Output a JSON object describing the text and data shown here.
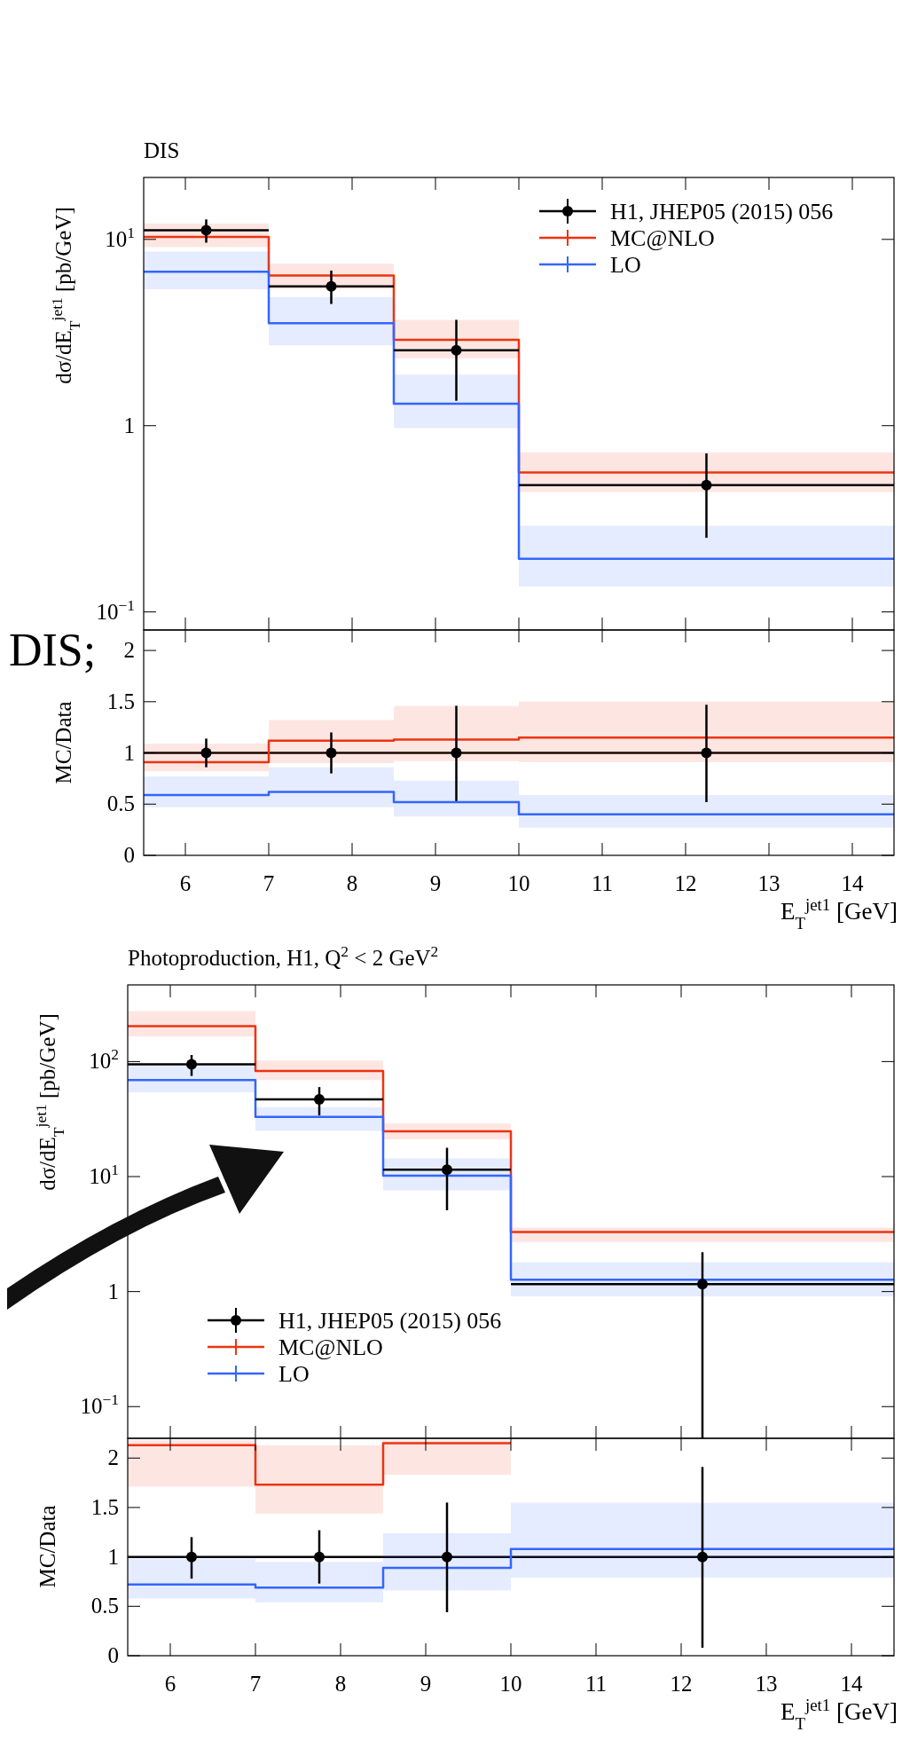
{
  "chart_data": [
    {
      "type": "step",
      "title": "DIS",
      "ylabel": "dσ/dE$_{T}$$^{jet1}$ [pb/GeV]",
      "log": "y",
      "xlim": [
        5.5,
        14.5
      ],
      "xticks": [
        6,
        7,
        8,
        9,
        10,
        11,
        12,
        13,
        14
      ],
      "ylim": [
        0.08,
        21.5
      ],
      "yticks": [
        {
          "value": 0.1,
          "label": "10$^{−1}$"
        },
        1,
        {
          "value": 10,
          "label": "10$^{1}$"
        }
      ],
      "tick_labels": "y",
      "legend": "top right",
      "series": [
        {
          "type": "step",
          "name": "MC@NLO",
          "color": "#ee3311",
          "x": [
            5.5,
            7,
            8.5,
            10,
            14.5
          ],
          "values": [
            10.3,
            6.4,
            2.89,
            0.56,
            0.56
          ],
          "lower": [
            9.1,
            5.4,
            2.3,
            0.44,
            0.44
          ],
          "upper": [
            12.2,
            7.4,
            3.7,
            0.72,
            0.72
          ]
        },
        {
          "type": "step",
          "name": "LO",
          "color": "#3366ff",
          "x": [
            5.5,
            7,
            8.5,
            10,
            14.5
          ],
          "values": [
            6.7,
            3.55,
            1.31,
            0.193,
            0.193
          ],
          "lower": [
            5.4,
            2.7,
            0.97,
            0.137,
            0.137
          ],
          "upper": [
            8.6,
            4.9,
            1.88,
            0.29,
            0.29
          ]
        },
        {
          "type": "scatter",
          "name": "H1, JHEP05 (2015) 056",
          "color": "#000000",
          "marker": "circle",
          "x": [
            6.25,
            7.75,
            9.25,
            12.25
          ],
          "values": [
            11.2,
            5.6,
            2.54,
            0.48
          ],
          "xerrors": [
            0.75,
            0.75,
            0.75,
            2.25
          ],
          "errors": [
            [
              9.6,
              12.8
            ],
            [
              4.5,
              6.8
            ],
            [
              1.36,
              3.7
            ],
            [
              0.25,
              0.71
            ]
          ]
        }
      ]
    },
    {
      "type": "step",
      "ylabel": "MC/Data",
      "xlabel": "E$_{T}$$^{jet1}$ [GeV]",
      "xlim": [
        5.5,
        14.5
      ],
      "xticks": [
        6,
        7,
        8,
        9,
        10,
        11,
        12,
        13,
        14
      ],
      "ylim": [
        0,
        2.2
      ],
      "yticks": [
        0,
        0.5,
        1,
        1.5,
        2
      ],
      "legend": false,
      "annotations": [
        "DIS;"
      ],
      "ref_lines": [
        {
          "axis": "y",
          "value": 1,
          "color": "#000000"
        }
      ],
      "series": [
        {
          "type": "step",
          "color": "#ee3311",
          "x": [
            5.5,
            7,
            8.5,
            10,
            14.5
          ],
          "values": [
            0.91,
            1.12,
            1.13,
            1.15,
            1.15
          ],
          "lower": [
            0.82,
            0.9,
            0.92,
            0.91,
            0.91
          ],
          "upper": [
            1.09,
            1.32,
            1.46,
            1.5,
            1.5
          ]
        },
        {
          "type": "step",
          "color": "#3366ff",
          "x": [
            5.5,
            7,
            8.5,
            10,
            14.5
          ],
          "values": [
            0.59,
            0.62,
            0.52,
            0.4,
            0.4
          ],
          "lower": [
            0.47,
            0.47,
            0.38,
            0.27,
            0.27
          ],
          "upper": [
            0.77,
            0.86,
            0.73,
            0.59,
            0.59
          ]
        },
        {
          "type": "scatter",
          "color": "#000000",
          "marker": "circle",
          "x": [
            6.25,
            7.75,
            9.25,
            12.25
          ],
          "values": [
            1,
            1,
            1,
            1
          ],
          "errors": [
            [
              0.86,
              1.14
            ],
            [
              0.8,
              1.2
            ],
            [
              0.53,
              1.46
            ],
            [
              0.52,
              1.47
            ]
          ]
        }
      ]
    },
    {
      "type": "step",
      "title": "Photoproduction, H1, Q$^{2}$ < 2 GeV$^{2}$",
      "ylabel": "dσ/dE$_{T}$$^{jet1}$ [pb/GeV]",
      "log": "y",
      "xlim": [
        5.5,
        14.5
      ],
      "xticks": [
        6,
        7,
        8,
        9,
        10,
        11,
        12,
        13,
        14
      ],
      "ylim": [
        0.053,
        464
      ],
      "yticks": [
        {
          "value": 0.1,
          "label": "10$^{−1}$"
        },
        1,
        {
          "value": 10,
          "label": "10$^{1}$"
        },
        {
          "value": 100,
          "label": "10$^{2}$"
        }
      ],
      "tick_labels": "y",
      "legend": "bottom left",
      "series": [
        {
          "type": "step",
          "name": "MC@NLO",
          "color": "#ee3311",
          "x": [
            5.5,
            7,
            8.5,
            10,
            14.5
          ],
          "values": [
            203,
            83,
            24.8,
            3.29,
            3.29
          ],
          "lower": [
            165,
            69,
            21,
            2.7,
            2.7
          ],
          "upper": [
            275,
            102,
            29,
            3.6,
            3.6
          ]
        },
        {
          "type": "step",
          "name": "LO",
          "color": "#3366ff",
          "x": [
            5.5,
            7,
            8.5,
            10,
            14.5
          ],
          "values": [
            69,
            33,
            10.2,
            1.27,
            1.27
          ],
          "lower": [
            54,
            25,
            7.6,
            0.91,
            0.91
          ],
          "upper": [
            92,
            40,
            14.4,
            1.8,
            1.8
          ]
        },
        {
          "type": "scatter",
          "name": "H1, JHEP05 (2015) 056",
          "color": "#000000",
          "marker": "circle",
          "x": [
            6.25,
            7.75,
            9.25,
            12.25
          ],
          "values": [
            94.8,
            47,
            11.5,
            1.16
          ],
          "xerrors": [
            0.75,
            0.75,
            0.75,
            2.25
          ],
          "errors": [
            [
              75,
              114
            ],
            [
              34,
              60
            ],
            [
              5.1,
              17.8
            ],
            [
              0.053,
              2.2
            ]
          ]
        }
      ]
    },
    {
      "type": "step",
      "ylabel": "MC/Data",
      "xlabel": "E$_{T}$$^{jet1}$ [GeV]",
      "xlim": [
        5.5,
        14.5
      ],
      "xticks": [
        6,
        7,
        8,
        9,
        10,
        11,
        12,
        13,
        14
      ],
      "ylim": [
        0,
        2.2
      ],
      "yticks": [
        0,
        0.5,
        1,
        1.5,
        2
      ],
      "legend": false,
      "ref_lines": [
        {
          "axis": "y",
          "value": 1,
          "color": "#000000"
        }
      ],
      "series": [
        {
          "type": "step",
          "color": "#ee3311",
          "x": [
            5.5,
            7,
            8.5,
            10
          ],
          "values": [
            2.13,
            1.73,
            2.15,
            2.15
          ],
          "lower": [
            1.71,
            1.44,
            1.83,
            1.83
          ],
          "upper": [
            2.18,
            2.13,
            2.18,
            2.18
          ]
        },
        {
          "type": "step",
          "color": "#3366ff",
          "x": [
            5.5,
            7,
            8.5,
            10,
            14.5
          ],
          "values": [
            0.72,
            0.69,
            0.89,
            1.08,
            1.08
          ],
          "lower": [
            0.58,
            0.54,
            0.66,
            0.79,
            0.79
          ],
          "upper": [
            0.98,
            0.95,
            1.24,
            1.55,
            1.55
          ]
        },
        {
          "type": "scatter",
          "color": "#000000",
          "marker": "circle",
          "x": [
            6.25,
            7.75,
            9.25,
            12.25
          ],
          "values": [
            1,
            1,
            1,
            1
          ],
          "errors": [
            [
              0.78,
              1.2
            ],
            [
              0.73,
              1.27
            ],
            [
              0.44,
              1.55
            ],
            [
              0.08,
              1.91
            ]
          ]
        }
      ]
    }
  ]
}
